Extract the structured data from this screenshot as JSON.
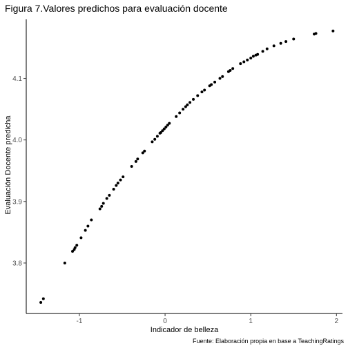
{
  "chart_data": {
    "type": "scatter",
    "title": "Figura 7.Valores predichos para evaluación docente",
    "xlabel": "Indicador de belleza",
    "ylabel": "Evaluación Docente predicha",
    "caption": "Fuente: Elaboración propia en base a TeachingRatings",
    "xlim": [
      -1.62,
      2.07
    ],
    "ylim": [
      3.718,
      4.196
    ],
    "xticks": [
      -1,
      0,
      1,
      2
    ],
    "xtick_labels": [
      "-1",
      "0",
      "1",
      "2"
    ],
    "yticks": [
      3.8,
      3.9,
      4.0,
      4.1
    ],
    "ytick_labels": [
      "3.8",
      "3.9",
      "4.0",
      "4.1"
    ],
    "grid": false,
    "legend": "none",
    "point_color": "#000000",
    "x": [
      -1.45,
      -1.42,
      -1.17,
      -1.08,
      -1.06,
      -1.05,
      -1.03,
      -0.98,
      -0.93,
      -0.9,
      -0.86,
      -0.76,
      -0.74,
      -0.72,
      -0.68,
      -0.65,
      -0.6,
      -0.57,
      -0.55,
      -0.52,
      -0.49,
      -0.39,
      -0.34,
      -0.32,
      -0.26,
      -0.24,
      -0.15,
      -0.12,
      -0.09,
      -0.06,
      -0.05,
      -0.03,
      -0.01,
      0.01,
      0.03,
      0.05,
      0.13,
      0.17,
      0.21,
      0.24,
      0.26,
      0.29,
      0.33,
      0.38,
      0.43,
      0.46,
      0.52,
      0.54,
      0.58,
      0.64,
      0.67,
      0.74,
      0.76,
      0.79,
      0.88,
      0.92,
      0.96,
      1.0,
      1.03,
      1.06,
      1.08,
      1.14,
      1.19,
      1.27,
      1.35,
      1.41,
      1.5,
      1.74,
      1.76,
      1.96
    ],
    "y": [
      3.736,
      3.742,
      3.8,
      3.819,
      3.822,
      3.825,
      3.829,
      3.841,
      3.853,
      3.86,
      3.87,
      3.888,
      3.892,
      3.897,
      3.905,
      3.91,
      3.92,
      3.926,
      3.93,
      3.935,
      3.94,
      3.957,
      3.965,
      3.969,
      3.979,
      3.982,
      3.997,
      4.001,
      4.006,
      4.011,
      4.012,
      4.015,
      4.018,
      4.021,
      4.024,
      4.027,
      4.038,
      4.044,
      4.05,
      4.054,
      4.057,
      4.061,
      4.066,
      4.072,
      4.078,
      4.081,
      4.088,
      4.09,
      4.094,
      4.1,
      4.103,
      4.111,
      4.113,
      4.116,
      4.124,
      4.127,
      4.13,
      4.133,
      4.136,
      4.138,
      4.139,
      4.144,
      4.148,
      4.153,
      4.157,
      4.16,
      4.164,
      4.172,
      4.173,
      4.177
    ]
  }
}
